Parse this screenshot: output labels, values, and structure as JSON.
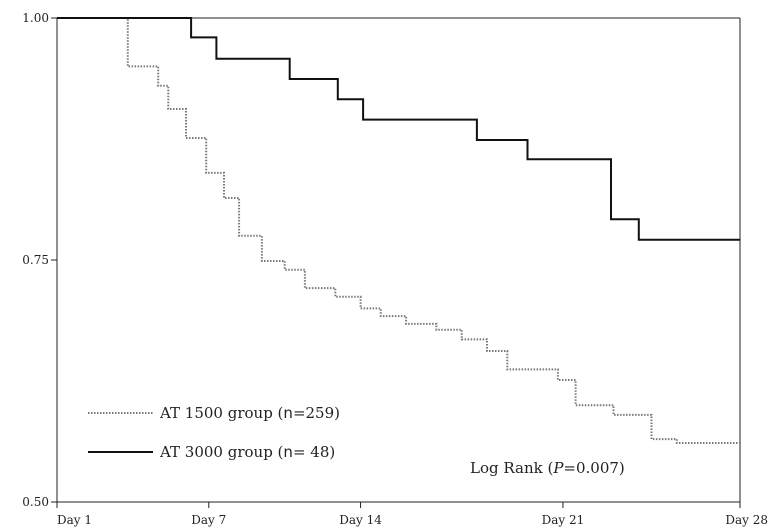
{
  "chart_data": {
    "type": "line",
    "step": true,
    "xlim": [
      1,
      28
    ],
    "ylim": [
      0.5,
      1.0
    ],
    "x_ticks": [
      {
        "value": 1,
        "label": "Day 1"
      },
      {
        "value": 7,
        "label": "Day 7"
      },
      {
        "value": 13,
        "label": "Day 14"
      },
      {
        "value": 21,
        "label": "Day 21"
      },
      {
        "value": 28,
        "label": "Day 28"
      }
    ],
    "y_ticks": [
      {
        "value": 1.0,
        "label": "1.00"
      },
      {
        "value": 0.75,
        "label": "0.75"
      },
      {
        "value": 0.5,
        "label": "0.50"
      }
    ],
    "grid": false,
    "legend_position": "bottom-left",
    "series": [
      {
        "name": "AT 1500 group (n=259)",
        "legend_parts": [
          "AT 1500 group (",
          "n",
          "=259)"
        ],
        "color": "#777777",
        "dash": "dotted",
        "points": [
          [
            1,
            1.0
          ],
          [
            3.8,
            1.0
          ],
          [
            3.8,
            0.95
          ],
          [
            5.0,
            0.95
          ],
          [
            5.0,
            0.93
          ],
          [
            5.4,
            0.93
          ],
          [
            5.4,
            0.906
          ],
          [
            6.1,
            0.906
          ],
          [
            6.1,
            0.876
          ],
          [
            6.9,
            0.876
          ],
          [
            6.9,
            0.84
          ],
          [
            7.6,
            0.84
          ],
          [
            7.6,
            0.814
          ],
          [
            8.2,
            0.814
          ],
          [
            8.2,
            0.775
          ],
          [
            9.1,
            0.775
          ],
          [
            9.1,
            0.749
          ],
          [
            10.0,
            0.749
          ],
          [
            10.0,
            0.74
          ],
          [
            10.8,
            0.74
          ],
          [
            10.8,
            0.721
          ],
          [
            12.0,
            0.721
          ],
          [
            12.0,
            0.712
          ],
          [
            13.0,
            0.712
          ],
          [
            13.0,
            0.7
          ],
          [
            13.8,
            0.7
          ],
          [
            13.8,
            0.692
          ],
          [
            14.8,
            0.692
          ],
          [
            14.8,
            0.684
          ],
          [
            16.0,
            0.684
          ],
          [
            16.0,
            0.678
          ],
          [
            17.0,
            0.678
          ],
          [
            17.0,
            0.668
          ],
          [
            18.0,
            0.668
          ],
          [
            18.0,
            0.656
          ],
          [
            18.8,
            0.656
          ],
          [
            18.8,
            0.637
          ],
          [
            20.8,
            0.637
          ],
          [
            20.8,
            0.626
          ],
          [
            21.5,
            0.626
          ],
          [
            21.5,
            0.6
          ],
          [
            23.0,
            0.6
          ],
          [
            23.0,
            0.59
          ],
          [
            24.5,
            0.59
          ],
          [
            24.5,
            0.565
          ],
          [
            25.5,
            0.565
          ],
          [
            25.5,
            0.561
          ],
          [
            28,
            0.561
          ]
        ]
      },
      {
        "name": "AT 3000 group (n= 48)",
        "legend_parts": [
          "AT 3000 group (",
          "n",
          "= 48)"
        ],
        "color": "#111111",
        "dash": "solid",
        "points": [
          [
            1,
            1.0
          ],
          [
            6.3,
            1.0
          ],
          [
            6.3,
            0.98
          ],
          [
            7.3,
            0.98
          ],
          [
            7.3,
            0.958
          ],
          [
            10.2,
            0.958
          ],
          [
            10.2,
            0.937
          ],
          [
            12.1,
            0.937
          ],
          [
            12.1,
            0.916
          ],
          [
            13.1,
            0.916
          ],
          [
            13.1,
            0.895
          ],
          [
            17.6,
            0.895
          ],
          [
            17.6,
            0.874
          ],
          [
            19.6,
            0.874
          ],
          [
            19.6,
            0.854
          ],
          [
            22.9,
            0.854
          ],
          [
            22.9,
            0.792
          ],
          [
            24.0,
            0.792
          ],
          [
            24.0,
            0.771
          ],
          [
            28,
            0.771
          ]
        ]
      }
    ],
    "annotation": {
      "parts": [
        "Log Rank (",
        "P",
        "=0.007)"
      ]
    }
  }
}
